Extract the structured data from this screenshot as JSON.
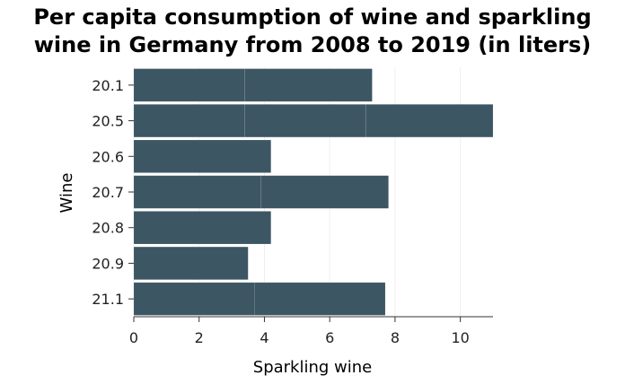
{
  "chart_data": {
    "type": "bar",
    "orientation": "horizontal",
    "title_lines": [
      "Per capita consumption of wine and sparkling",
      "wine in Germany from 2008 to 2019 (in liters)"
    ],
    "xlabel": "Sparkling wine",
    "ylabel": "Wine",
    "xlim": [
      0,
      11
    ],
    "xticks": [
      "0",
      "2",
      "4",
      "6",
      "8",
      "10"
    ],
    "grid": true,
    "bar_color": "#3d5663",
    "categories": [
      "20.1",
      "20.5",
      "20.6",
      "20.7",
      "20.8",
      "20.9",
      "21.1"
    ],
    "segments": [
      [
        3.4,
        3.9
      ],
      [
        3.4,
        3.7,
        3.9
      ],
      [
        4.2
      ],
      [
        3.9,
        3.9
      ],
      [
        4.2
      ],
      [
        3.5
      ],
      [
        3.7,
        4.0
      ]
    ]
  }
}
